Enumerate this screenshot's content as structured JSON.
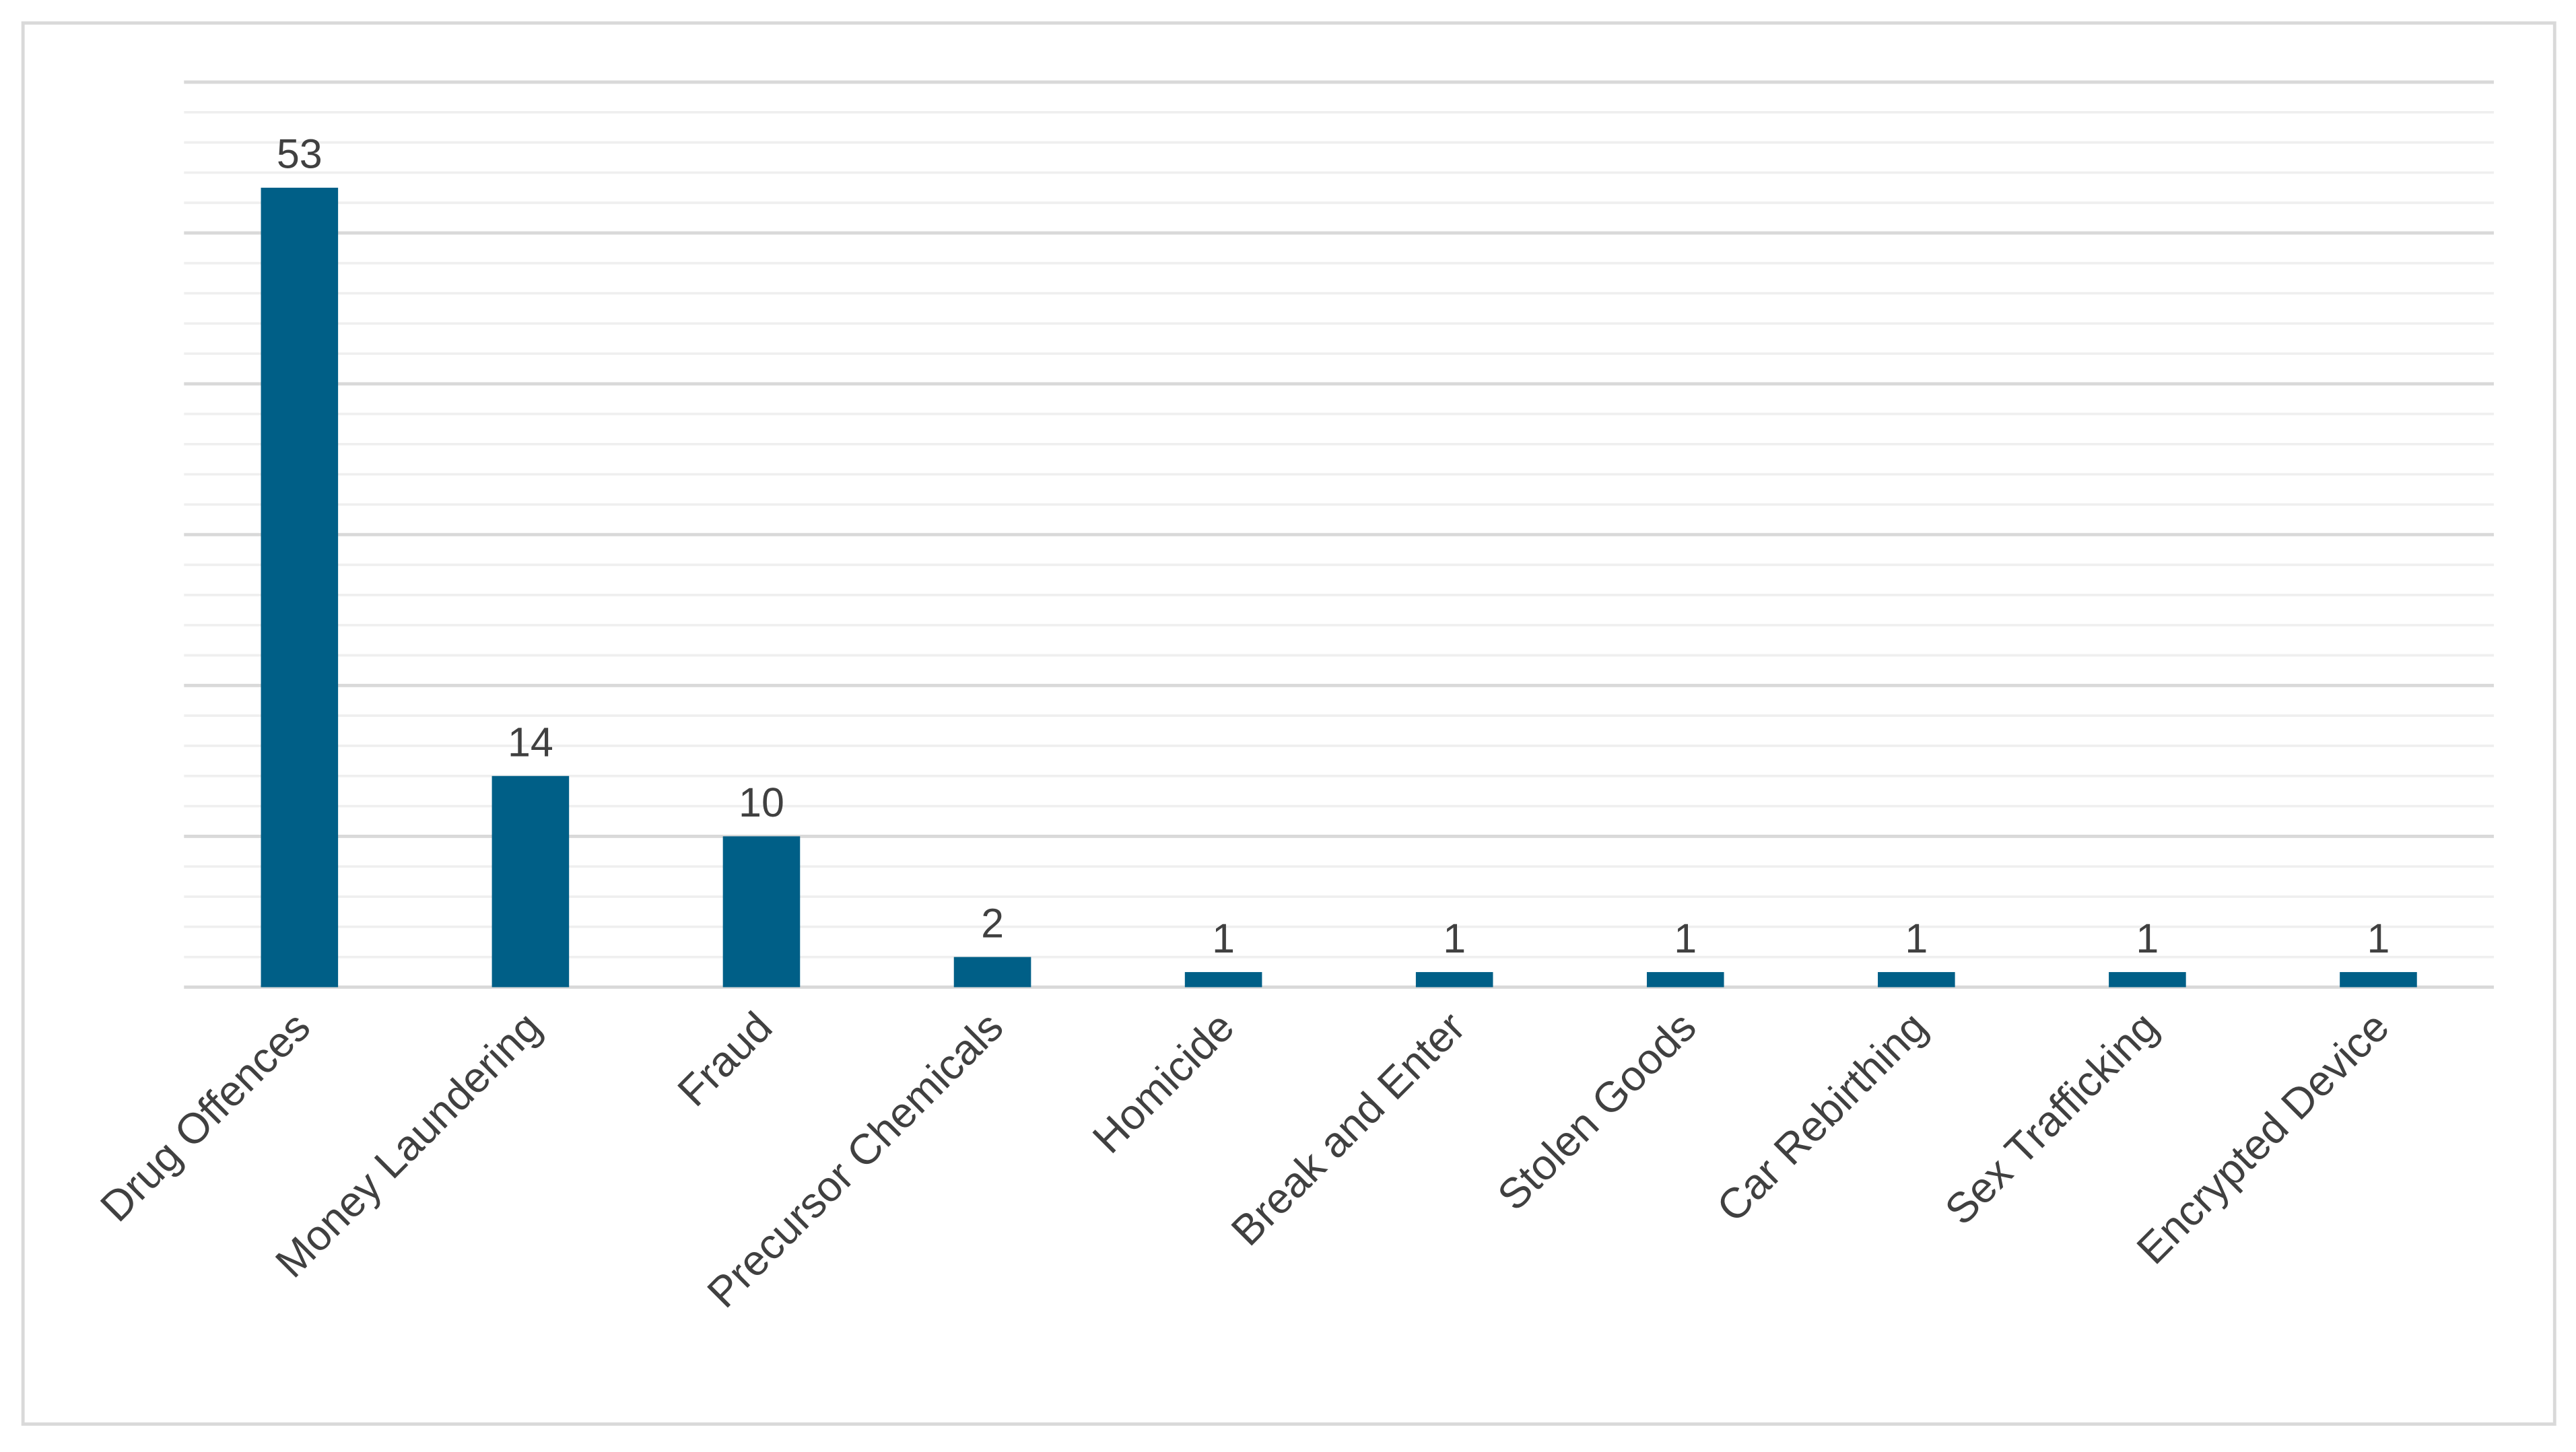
{
  "chart_data": {
    "type": "bar",
    "categories": [
      "Drug Offences",
      "Money Laundering",
      "Fraud",
      "Precursor Chemicals",
      "Homicide",
      "Break and Enter",
      "Stolen Goods",
      "Car Rebirthing",
      "Sex Trafficking",
      "Encrypted Device"
    ],
    "values": [
      53,
      14,
      10,
      2,
      1,
      1,
      1,
      1,
      1,
      1
    ],
    "color": "#005f87",
    "ylim": [
      0,
      60
    ],
    "yticks": [
      0,
      10,
      20,
      30,
      40,
      50,
      60
    ],
    "minor_yticks": [
      2,
      4,
      6,
      8,
      12,
      14,
      16,
      18,
      22,
      24,
      26,
      28,
      32,
      34,
      36,
      38,
      42,
      44,
      46,
      48,
      52,
      54,
      56,
      58
    ],
    "ytick_labels": false,
    "grid": true,
    "data_labels": true
  }
}
